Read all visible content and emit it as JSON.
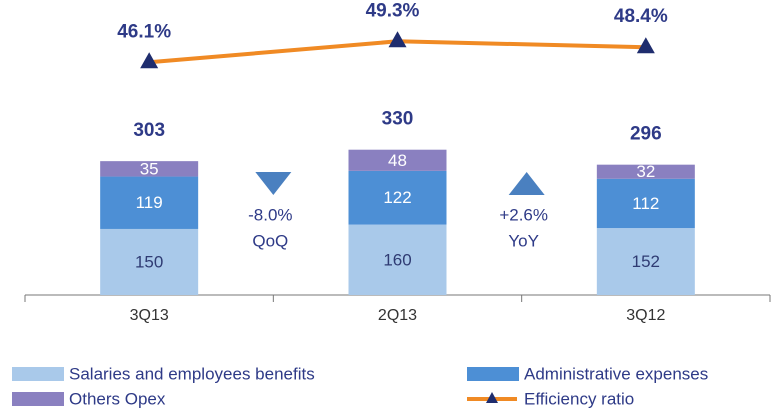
{
  "chart_data": {
    "type": "bar",
    "stacked": true,
    "categories": [
      "3Q13",
      "2Q13",
      "3Q12"
    ],
    "series": [
      {
        "name": "Salaries and employees benefits",
        "color": "#a9c9ea",
        "label_color": "#2f3b73",
        "values": [
          150,
          160,
          152
        ]
      },
      {
        "name": "Administrative expenses",
        "color": "#4d8fd5",
        "label_color": "#ffffff",
        "values": [
          119,
          122,
          112
        ]
      },
      {
        "name": "Others Opex",
        "color": "#8a80c0",
        "label_color": "#ffffff",
        "values": [
          35,
          48,
          32
        ]
      },
      {
        "name": "Efficiency ratio",
        "type": "line",
        "axis": "y2",
        "color": "#f08a24",
        "marker_color": "#1f2d6e",
        "values": [
          46.1,
          49.3,
          48.4
        ],
        "value_labels": [
          "46.1%",
          "49.3%",
          "48.4%"
        ]
      }
    ],
    "totals": [
      303,
      330,
      296
    ],
    "ylim": [
      0,
      670
    ],
    "y2lim": [
      10.6,
      55.6
    ],
    "annotations": [
      {
        "text": "-8.0%",
        "label": "QoQ",
        "direction": "down",
        "color": "#4a80c0"
      },
      {
        "text": "+2.6%",
        "label": "YoY",
        "direction": "up",
        "color": "#4a80c0"
      }
    ]
  }
}
